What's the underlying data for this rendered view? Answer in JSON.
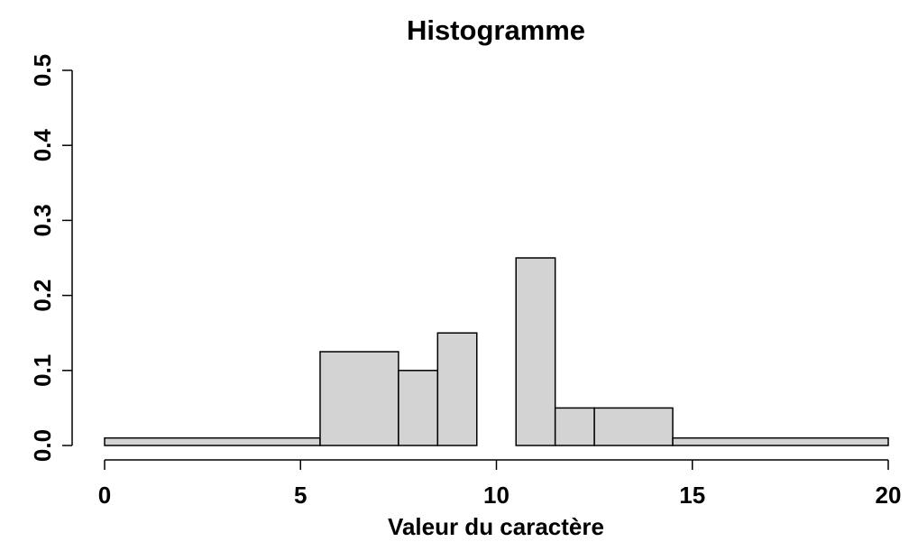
{
  "chart_data": {
    "type": "bar",
    "title": "Histogramme",
    "xlabel": "Valeur du caractère",
    "ylabel": "",
    "xlim": [
      0,
      20
    ],
    "ylim": [
      0,
      0.5
    ],
    "x_ticks": [
      0,
      5,
      10,
      15,
      20
    ],
    "x_tick_labels": [
      "0",
      "5",
      "10",
      "15",
      "20"
    ],
    "y_ticks": [
      0,
      0.1,
      0.2,
      0.3,
      0.4,
      0.5
    ],
    "y_tick_labels": [
      "0.0",
      "0.1",
      "0.2",
      "0.3",
      "0.4",
      "0.5"
    ],
    "grid": false,
    "bar_color": "#d3d3d3",
    "bins": [
      {
        "x0": 0,
        "x1": 5.5,
        "density": 0.01
      },
      {
        "x0": 5.5,
        "x1": 7.5,
        "density": 0.125
      },
      {
        "x0": 7.5,
        "x1": 8.5,
        "density": 0.1
      },
      {
        "x0": 8.5,
        "x1": 9.5,
        "density": 0.15
      },
      {
        "x0": 9.5,
        "x1": 10.5,
        "density": 0
      },
      {
        "x0": 10.5,
        "x1": 11.5,
        "density": 0.25
      },
      {
        "x0": 11.5,
        "x1": 12.5,
        "density": 0.05
      },
      {
        "x0": 12.5,
        "x1": 14.5,
        "density": 0.05
      },
      {
        "x0": 14.5,
        "x1": 20,
        "density": 0.01
      }
    ]
  }
}
